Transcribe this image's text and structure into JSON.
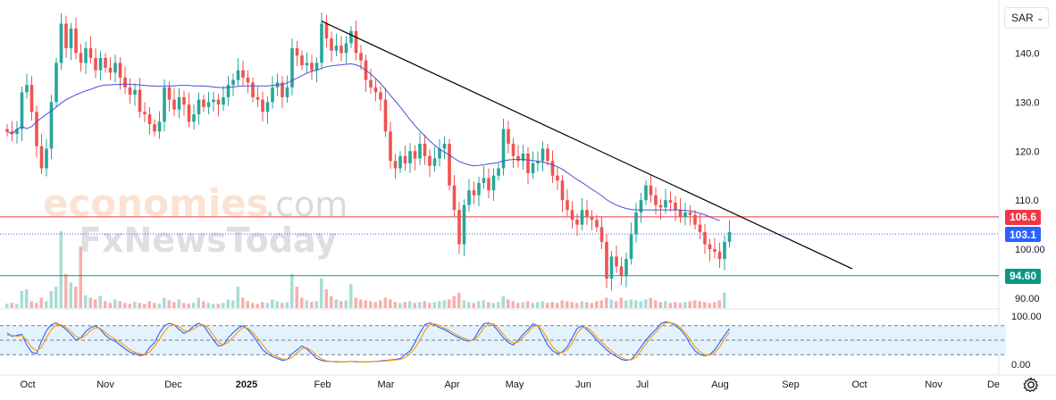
{
  "toolbar": {
    "currency": "SAR"
  },
  "watermark": {
    "line1": "economies",
    "line1_suffix": ".com",
    "line2": "FxNewsToday"
  },
  "levels": [
    {
      "label": "106.6",
      "value": 106.6,
      "color": "#f23645",
      "style": "solid"
    },
    {
      "label": "103.1",
      "value": 103.1,
      "color": "#2962ff",
      "style": "dotted"
    },
    {
      "label": "94.60",
      "value": 94.6,
      "color": "#089981",
      "style": "solid"
    }
  ],
  "colors": {
    "up": "#26a69a",
    "down": "#ef5350",
    "ma": "#4a4fd6",
    "trendline": "#000000",
    "stoch_k": "#2962ff",
    "stoch_d": "#ff9800",
    "band": "#e3f2fd"
  },
  "chart_data": [
    {
      "type": "candlestick",
      "x_labels": [
        "Oct",
        "Nov",
        "Dec",
        "2025",
        "Feb",
        "Mar",
        "Apr",
        "May",
        "Jun",
        "Jul",
        "Aug",
        "Sep",
        "Oct",
        "Nov",
        "De"
      ],
      "y_ticks": [
        "140.0",
        "130.0",
        "120.0",
        "110.0",
        "100.00",
        "90.00"
      ],
      "ylim": [
        88,
        149
      ],
      "close": [
        124.0,
        123.5,
        124.5,
        132.0,
        133.5,
        128.0,
        121.0,
        116.5,
        120.5,
        130.0,
        138.0,
        146.0,
        141.0,
        145.0,
        140.0,
        138.0,
        141.0,
        139.0,
        136.5,
        139.0,
        137.0,
        136.0,
        138.0,
        135.0,
        133.0,
        131.5,
        132.5,
        128.0,
        127.5,
        125.5,
        124.0,
        126.0,
        133.0,
        130.5,
        128.5,
        131.0,
        129.5,
        126.0,
        127.5,
        130.5,
        129.0,
        130.0,
        130.5,
        129.5,
        131.0,
        133.5,
        134.5,
        136.5,
        135.0,
        134.0,
        131.0,
        130.5,
        128.0,
        130.0,
        133.0,
        134.0,
        131.0,
        133.0,
        141.0,
        139.5,
        137.5,
        138.0,
        136.5,
        138.0,
        146.0,
        143.0,
        140.5,
        141.5,
        140.0,
        142.0,
        144.5,
        140.0,
        138.5,
        134.5,
        133.0,
        132.0,
        130.5,
        124.0,
        118.0,
        116.5,
        119.0,
        117.5,
        120.0,
        118.5,
        121.5,
        119.0,
        117.0,
        118.5,
        120.5,
        121.5,
        113.0,
        108.0,
        101.0,
        109.0,
        112.0,
        111.0,
        113.5,
        114.5,
        112.0,
        115.0,
        116.5,
        124.5,
        121.5,
        119.0,
        118.0,
        119.5,
        115.5,
        117.5,
        118.0,
        120.5,
        118.0,
        115.0,
        114.0,
        110.0,
        108.0,
        106.0,
        105.0,
        108.0,
        106.5,
        106.0,
        104.5,
        101.5,
        94.0,
        98.5,
        96.5,
        94.5,
        98.0,
        103.0,
        107.5,
        110.0,
        113.0,
        111.0,
        109.0,
        108.5,
        110.0,
        109.5,
        108.0,
        106.5,
        107.5,
        107.0,
        105.0,
        103.5,
        101.0,
        100.0,
        99.5,
        98.0,
        101.5,
        103.5
      ],
      "series": [
        {
          "name": "",
          "values": [
            124.0,
            123.5,
            124.5,
            125.0,
            124.6,
            125.0,
            126.0,
            126.8,
            127.5,
            128.2,
            129.0,
            129.8,
            130.5,
            131.0,
            131.5,
            131.9,
            132.3,
            132.6,
            133.0,
            133.3,
            133.5,
            133.5,
            133.6,
            133.6,
            133.7,
            133.6,
            133.6,
            133.5,
            133.4,
            133.3,
            133.3,
            133.2,
            133.3,
            133.3,
            133.3,
            133.4,
            133.4,
            133.4,
            133.3,
            133.3,
            133.3,
            133.2,
            133.1,
            133.0,
            132.9,
            133.0,
            133.1,
            133.2,
            133.3,
            133.3,
            133.3,
            133.3,
            133.3,
            133.3,
            133.4,
            133.5,
            133.6,
            133.9,
            134.4,
            134.9,
            135.4,
            135.9,
            136.3,
            136.5,
            136.9,
            137.2,
            137.4,
            137.5,
            137.6,
            137.7,
            137.8,
            137.6,
            137.2,
            136.5,
            135.7,
            134.8,
            133.8,
            132.6,
            131.4,
            130.2,
            129.0,
            127.7,
            126.4,
            125.2,
            124.1,
            123.1,
            122.1,
            121.2,
            120.4,
            119.8,
            119.2,
            118.5,
            117.9,
            117.5,
            117.2,
            117.0,
            117.1,
            117.2,
            117.4,
            117.5,
            117.7,
            118.0,
            118.2,
            118.3,
            118.3,
            118.3,
            118.2,
            118.1,
            117.9,
            117.8,
            117.5,
            117.2,
            116.8,
            116.3,
            115.6,
            114.9,
            114.2,
            113.6,
            112.9,
            112.2,
            111.6,
            110.9,
            110.1,
            109.5,
            109.0,
            108.6,
            108.3,
            108.1,
            108.0,
            108.0,
            108.0,
            108.0,
            108.0,
            108.0,
            108.0,
            108.0,
            108.0,
            108.0,
            107.9,
            107.8,
            107.6,
            107.3,
            107.0,
            106.6,
            106.2,
            105.8
          ]
        }
      ],
      "trendline": {
        "from": {
          "index": 64,
          "value": 146.5
        },
        "to": {
          "index": 172,
          "value": 96.0
        }
      }
    },
    {
      "type": "line",
      "name": "stochastic",
      "y_ticks": [
        "100.00",
        "0.00"
      ],
      "ylim": [
        0,
        100
      ],
      "band": [
        20,
        80
      ],
      "mid": 50,
      "series": [
        {
          "name": "",
          "values": [
            65,
            58,
            60,
            62,
            40,
            25,
            22,
            48,
            70,
            82,
            86,
            80,
            72,
            62,
            50,
            55,
            68,
            76,
            80,
            72,
            60,
            52,
            48,
            40,
            32,
            25,
            22,
            18,
            20,
            35,
            45,
            65,
            80,
            85,
            82,
            72,
            64,
            70,
            80,
            85,
            80,
            65,
            50,
            38,
            40,
            55,
            66,
            75,
            80,
            72,
            60,
            45,
            30,
            22,
            16,
            12,
            8,
            10,
            22,
            30,
            38,
            32,
            22,
            12,
            8,
            6,
            6,
            5,
            5,
            5,
            6,
            5,
            5,
            5,
            5,
            6,
            7,
            8,
            9,
            10,
            12,
            20,
            28,
            45,
            65,
            82,
            86,
            82,
            76,
            72,
            66,
            60,
            55,
            50,
            48,
            52,
            70,
            84,
            86,
            80,
            68,
            55,
            45,
            40,
            50,
            62,
            72,
            84,
            80,
            60,
            40,
            28,
            22,
            26,
            36,
            55,
            74,
            80,
            72,
            62,
            50,
            40,
            30,
            22,
            16,
            10,
            8,
            10,
            22,
            36,
            50,
            62,
            72,
            84,
            88,
            86,
            80,
            72,
            60,
            42,
            28,
            20,
            18,
            20,
            30,
            45,
            60,
            74
          ]
        },
        {
          "name": "",
          "values": [
            60,
            60,
            58,
            60,
            50,
            35,
            28,
            35,
            55,
            72,
            82,
            82,
            76,
            68,
            58,
            54,
            60,
            70,
            76,
            74,
            66,
            58,
            52,
            46,
            38,
            30,
            25,
            22,
            20,
            26,
            38,
            52,
            68,
            80,
            82,
            78,
            70,
            68,
            74,
            80,
            82,
            74,
            60,
            46,
            40,
            46,
            56,
            68,
            76,
            75,
            66,
            54,
            40,
            28,
            20,
            15,
            11,
            10,
            14,
            24,
            32,
            34,
            28,
            18,
            11,
            7,
            6,
            6,
            5,
            5,
            6,
            6,
            5,
            5,
            5,
            6,
            6,
            7,
            8,
            9,
            10,
            14,
            22,
            34,
            50,
            70,
            82,
            84,
            80,
            75,
            70,
            64,
            58,
            54,
            50,
            50,
            60,
            76,
            84,
            84,
            75,
            62,
            50,
            44,
            46,
            56,
            66,
            78,
            80,
            70,
            52,
            36,
            26,
            24,
            30,
            44,
            64,
            76,
            76,
            68,
            56,
            46,
            36,
            28,
            20,
            14,
            10,
            9,
            15,
            28,
            42,
            56,
            66,
            78,
            86,
            86,
            84,
            76,
            66,
            52,
            36,
            26,
            20,
            19,
            24,
            36,
            52,
            66
          ]
        }
      ]
    },
    {
      "type": "bar",
      "name": "volume",
      "values": [
        5,
        6,
        5,
        20,
        22,
        8,
        6,
        12,
        8,
        20,
        25,
        90,
        40,
        30,
        25,
        72,
        15,
        12,
        10,
        14,
        8,
        6,
        10,
        8,
        6,
        5,
        7,
        6,
        5,
        8,
        6,
        5,
        12,
        9,
        7,
        10,
        6,
        5,
        6,
        12,
        8,
        6,
        5,
        5,
        6,
        10,
        9,
        25,
        12,
        8,
        6,
        5,
        7,
        6,
        10,
        8,
        6,
        7,
        40,
        25,
        12,
        9,
        7,
        8,
        35,
        22,
        14,
        10,
        8,
        9,
        28,
        12,
        10,
        9,
        8,
        7,
        9,
        12,
        10,
        7,
        6,
        7,
        8,
        6,
        7,
        8,
        6,
        7,
        8,
        9,
        10,
        14,
        18,
        9,
        7,
        6,
        8,
        9,
        7,
        6,
        7,
        14,
        10,
        8,
        6,
        7,
        8,
        6,
        7,
        8,
        6,
        7,
        6,
        9,
        8,
        7,
        6,
        8,
        7,
        6,
        8,
        9,
        12,
        10,
        8,
        12,
        9,
        10,
        9,
        8,
        10,
        12,
        9,
        7,
        8,
        6,
        7,
        6,
        7,
        8,
        9,
        8,
        7,
        6,
        7,
        9,
        18
      ]
    }
  ]
}
